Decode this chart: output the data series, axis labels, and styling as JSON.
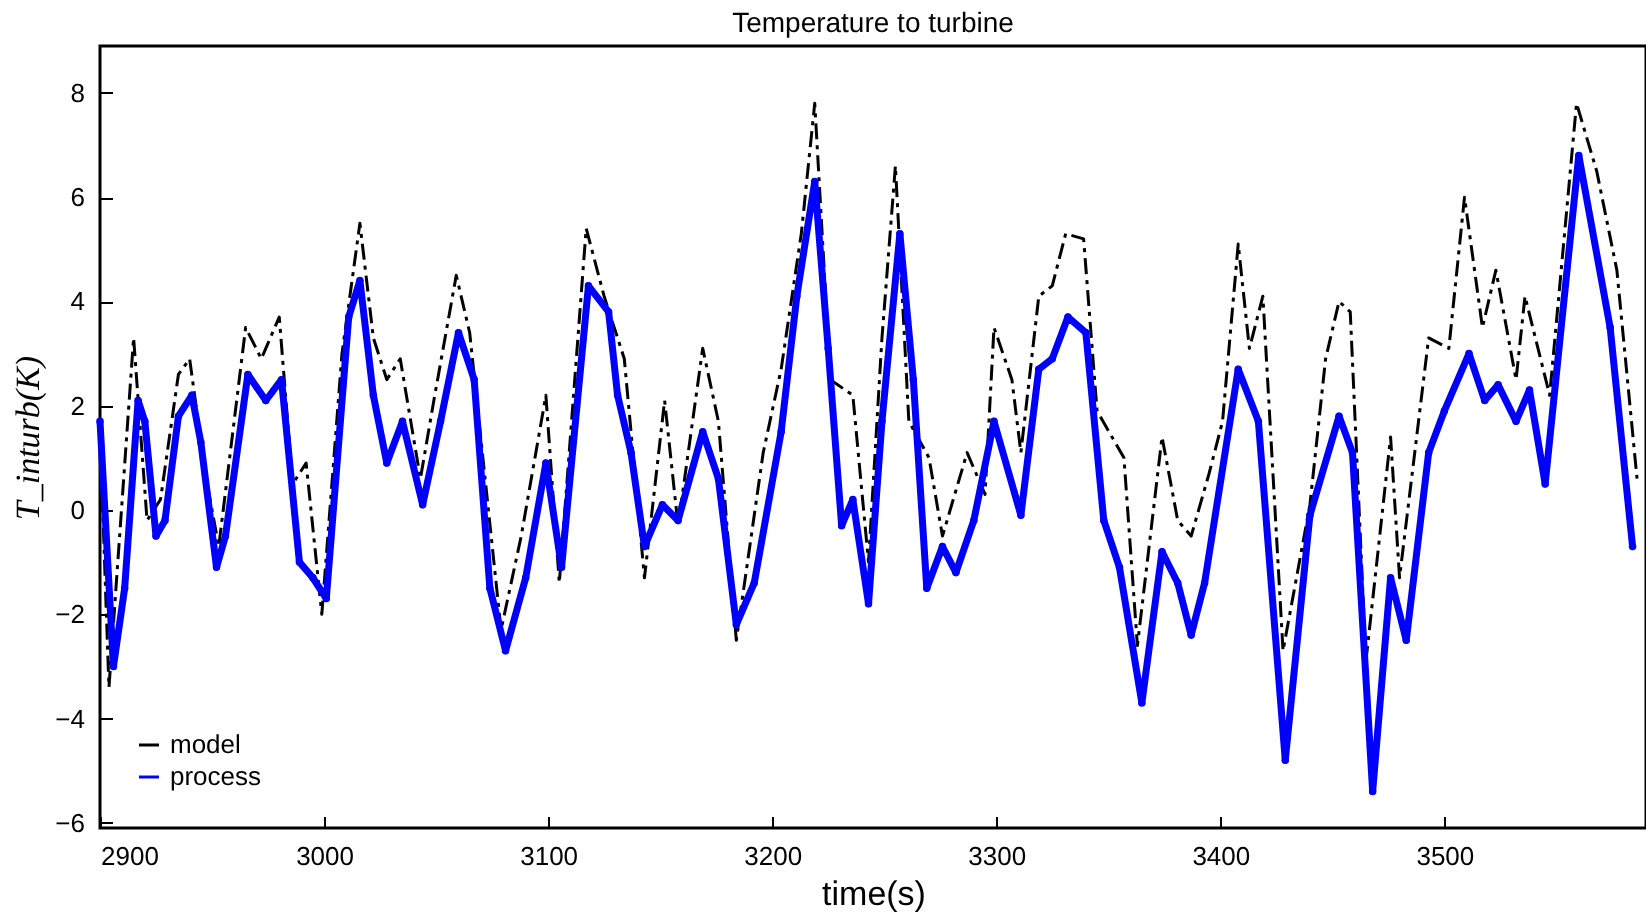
{
  "chart_data": {
    "type": "line",
    "title": "Temperature to turbine",
    "xlabel": "time(s)",
    "ylabel": "T_inturb(K)",
    "xlim": [
      2900,
      3590
    ],
    "xticks": [
      2900,
      3000,
      3100,
      3200,
      3300,
      3400,
      3500
    ],
    "ylim": [
      -6.1,
      8.9
    ],
    "yticks": [
      -6,
      -4,
      -2,
      0,
      2,
      4,
      6,
      8
    ],
    "grid": false,
    "legend": "bottom left",
    "series": [
      {
        "name": "model",
        "color": "#000000",
        "line_style": "dashed",
        "marker": "none",
        "x": [
          2900,
          2904,
          2915,
          2921,
          2927,
          2935,
          2940,
          2947,
          2953,
          2965,
          2972,
          2980,
          2986,
          2992,
          2999,
          3008,
          3016,
          3022,
          3028,
          3034,
          3043,
          3049,
          3059,
          3065,
          3079,
          3088,
          3099,
          3105,
          3117,
          3125,
          3134,
          3143,
          3152,
          3158,
          3169,
          3176,
          3184,
          3196,
          3204,
          3213,
          3219,
          3226,
          3236,
          3243,
          3249,
          3255,
          3261,
          3270,
          3276,
          3287,
          3295,
          3299,
          3307,
          3311,
          3319,
          3325,
          3331,
          3339,
          3345,
          3357,
          3363,
          3374,
          3381,
          3387,
          3395,
          3401,
          3408,
          3413,
          3419,
          3428,
          3440,
          3447,
          3453,
          3458,
          3465,
          3476,
          3480,
          3493,
          3502,
          3509,
          3517,
          3523,
          3532,
          3536,
          3547,
          3559,
          3568,
          3577,
          3586
        ],
        "values": [
          1.5,
          -3.4,
          3.3,
          -0.2,
          0.2,
          2.6,
          2.9,
          0.7,
          -0.7,
          3.5,
          2.9,
          3.7,
          0.5,
          0.9,
          -2.0,
          3.0,
          5.5,
          3.3,
          2.5,
          2.9,
          0.6,
          2.1,
          4.5,
          3.4,
          -2.3,
          -0.5,
          2.2,
          -1.4,
          5.4,
          4.1,
          2.9,
          -1.3,
          2.1,
          -0.3,
          3.1,
          1.7,
          -2.5,
          1.1,
          2.7,
          5.3,
          7.8,
          2.5,
          2.2,
          -1.0,
          3.3,
          6.6,
          1.7,
          1.0,
          -0.5,
          1.1,
          0.3,
          3.5,
          2.5,
          1.1,
          4.1,
          4.3,
          5.3,
          5.2,
          1.9,
          1.0,
          -2.6,
          1.4,
          -0.2,
          -0.5,
          0.7,
          1.7,
          5.1,
          3.1,
          4.1,
          -2.7,
          0.1,
          2.9,
          4.0,
          3.8,
          -2.9,
          1.4,
          -1.3,
          3.3,
          3.1,
          6.0,
          3.5,
          4.6,
          2.5,
          4.1,
          2.2,
          7.8,
          6.5,
          4.6,
          0.6
        ]
      },
      {
        "name": "process",
        "color": "#0000ff",
        "line_style": "solid",
        "marker": "circle",
        "x": [
          2900,
          2906,
          2911,
          2917,
          2920,
          2925,
          2929,
          2935,
          2941,
          2945,
          2952,
          2956,
          2966,
          2974,
          2981,
          2989,
          2995,
          3001,
          3011,
          3016,
          3022,
          3028,
          3035,
          3044,
          3052,
          3060,
          3067,
          3074,
          3081,
          3090,
          3099,
          3106,
          3118,
          3127,
          3131,
          3137,
          3143,
          3151,
          3158,
          3169,
          3176,
          3184,
          3192,
          3204,
          3211,
          3219,
          3225,
          3231,
          3236,
          3243,
          3249,
          3257,
          3263,
          3269,
          3276,
          3282,
          3290,
          3299,
          3311,
          3319,
          3325,
          3332,
          3340,
          3348,
          3355,
          3365,
          3374,
          3381,
          3387,
          3393,
          3408,
          3417,
          3429,
          3440,
          3453,
          3459,
          3468,
          3476,
          3483,
          3493,
          3500,
          3511,
          3518,
          3524,
          3532,
          3538,
          3545,
          3560,
          3574,
          3584
        ],
        "values": [
          1.7,
          -3.0,
          -1.5,
          2.1,
          1.7,
          -0.5,
          -0.2,
          1.8,
          2.2,
          1.3,
          -1.1,
          -0.5,
          2.6,
          2.1,
          2.5,
          -1.0,
          -1.3,
          -1.7,
          3.7,
          4.4,
          2.2,
          0.9,
          1.7,
          0.1,
          1.7,
          3.4,
          2.5,
          -1.5,
          -2.7,
          -1.3,
          0.9,
          -1.1,
          4.3,
          3.8,
          2.2,
          1.1,
          -0.7,
          0.1,
          -0.2,
          1.5,
          0.6,
          -2.2,
          -1.4,
          1.5,
          4.1,
          6.3,
          3.1,
          -0.3,
          0.2,
          -1.8,
          1.7,
          5.3,
          2.5,
          -1.5,
          -0.7,
          -1.2,
          -0.2,
          1.7,
          -0.1,
          2.7,
          2.9,
          3.7,
          3.4,
          -0.2,
          -1.1,
          -3.7,
          -0.8,
          -1.4,
          -2.4,
          -1.4,
          2.7,
          1.7,
          -4.8,
          -0.1,
          1.8,
          1.1,
          -5.4,
          -1.3,
          -2.5,
          1.1,
          1.9,
          3.0,
          2.1,
          2.4,
          1.7,
          2.3,
          0.5,
          6.8,
          3.5,
          -0.7
        ]
      }
    ]
  }
}
